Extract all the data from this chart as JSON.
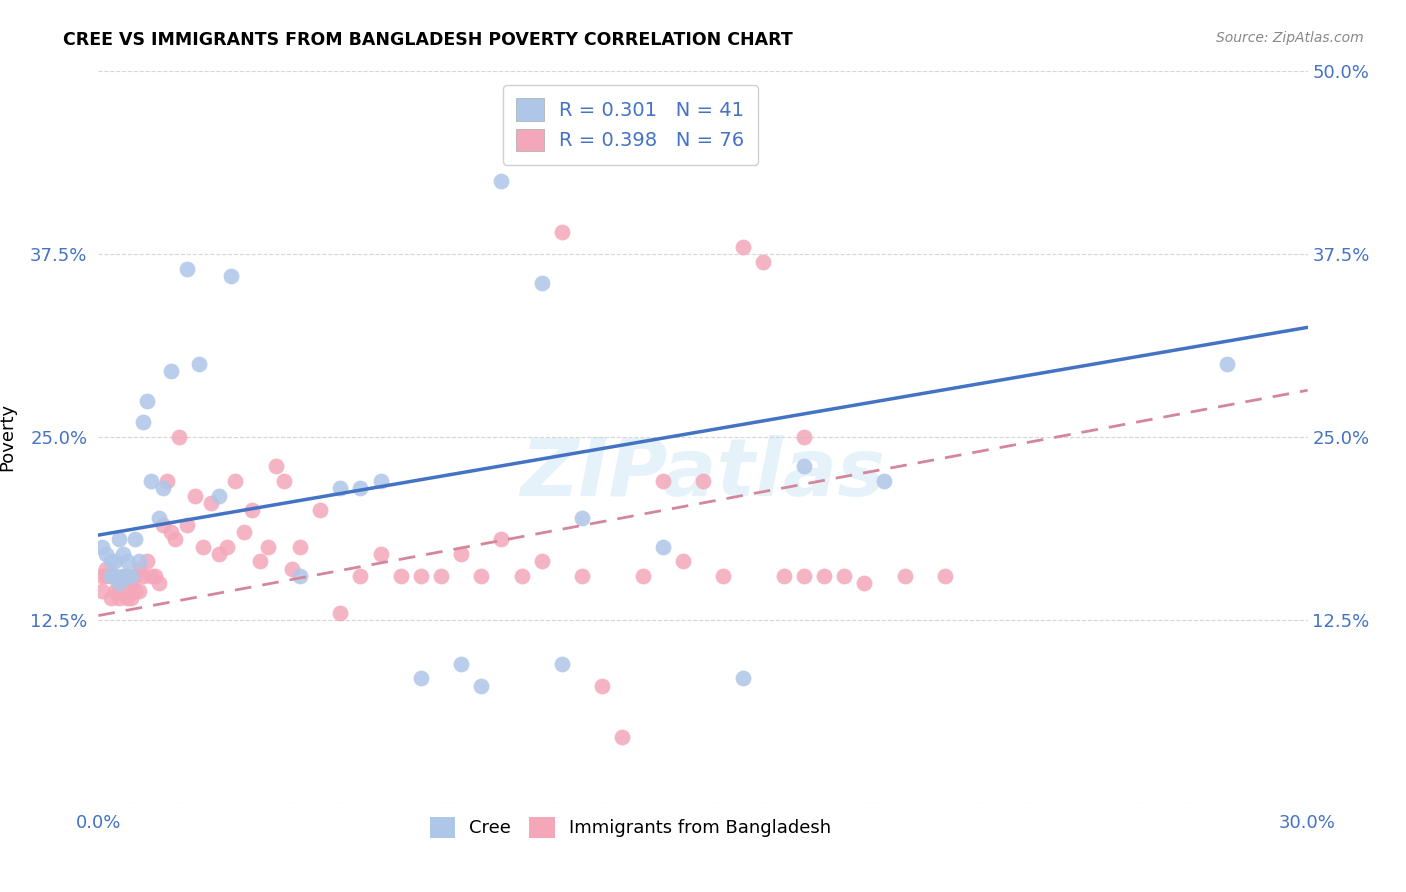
{
  "title": "CREE VS IMMIGRANTS FROM BANGLADESH POVERTY CORRELATION CHART",
  "source": "Source: ZipAtlas.com",
  "ylabel": "Poverty",
  "xlim": [
    0.0,
    0.3
  ],
  "ylim": [
    0.0,
    0.5
  ],
  "cree_color": "#aec6e8",
  "bangladesh_color": "#f4a7b9",
  "cree_line_color": "#4472c4",
  "bangladesh_line_color": "#d4869a",
  "legend1_label": "R = 0.301   N = 41",
  "legend2_label": "R = 0.398   N = 76",
  "cree_line_x0": 0.0,
  "cree_line_y0": 0.183,
  "cree_line_x1": 0.3,
  "cree_line_y1": 0.325,
  "bd_line_x0": 0.0,
  "bd_line_y0": 0.128,
  "bd_line_x1": 0.3,
  "bd_line_y1": 0.282,
  "cree_x": [
    0.001,
    0.002,
    0.003,
    0.003,
    0.004,
    0.004,
    0.005,
    0.005,
    0.006,
    0.006,
    0.007,
    0.007,
    0.008,
    0.009,
    0.01,
    0.011,
    0.012,
    0.013,
    0.015,
    0.016,
    0.018,
    0.022,
    0.025,
    0.03,
    0.033,
    0.05,
    0.06,
    0.065,
    0.07,
    0.08,
    0.09,
    0.1,
    0.11,
    0.12,
    0.14,
    0.16,
    0.175,
    0.195,
    0.28,
    0.095,
    0.115
  ],
  "cree_y": [
    0.175,
    0.17,
    0.155,
    0.165,
    0.155,
    0.165,
    0.15,
    0.18,
    0.155,
    0.17,
    0.155,
    0.165,
    0.155,
    0.18,
    0.165,
    0.26,
    0.275,
    0.22,
    0.195,
    0.215,
    0.295,
    0.365,
    0.3,
    0.21,
    0.36,
    0.155,
    0.215,
    0.215,
    0.22,
    0.085,
    0.095,
    0.425,
    0.355,
    0.195,
    0.175,
    0.085,
    0.23,
    0.22,
    0.3,
    0.08,
    0.095
  ],
  "bd_x": [
    0.001,
    0.001,
    0.002,
    0.002,
    0.003,
    0.003,
    0.004,
    0.004,
    0.005,
    0.005,
    0.006,
    0.006,
    0.007,
    0.007,
    0.008,
    0.008,
    0.009,
    0.009,
    0.01,
    0.01,
    0.011,
    0.012,
    0.013,
    0.014,
    0.015,
    0.016,
    0.017,
    0.018,
    0.019,
    0.02,
    0.022,
    0.024,
    0.026,
    0.028,
    0.03,
    0.032,
    0.034,
    0.036,
    0.038,
    0.04,
    0.042,
    0.044,
    0.046,
    0.048,
    0.05,
    0.055,
    0.06,
    0.065,
    0.07,
    0.075,
    0.08,
    0.085,
    0.09,
    0.095,
    0.1,
    0.105,
    0.11,
    0.115,
    0.12,
    0.125,
    0.13,
    0.135,
    0.14,
    0.145,
    0.15,
    0.155,
    0.16,
    0.165,
    0.17,
    0.175,
    0.18,
    0.185,
    0.19,
    0.2,
    0.175,
    0.21
  ],
  "bd_y": [
    0.155,
    0.145,
    0.16,
    0.155,
    0.14,
    0.155,
    0.145,
    0.155,
    0.14,
    0.145,
    0.15,
    0.155,
    0.14,
    0.155,
    0.15,
    0.14,
    0.145,
    0.155,
    0.145,
    0.16,
    0.155,
    0.165,
    0.155,
    0.155,
    0.15,
    0.19,
    0.22,
    0.185,
    0.18,
    0.25,
    0.19,
    0.21,
    0.175,
    0.205,
    0.17,
    0.175,
    0.22,
    0.185,
    0.2,
    0.165,
    0.175,
    0.23,
    0.22,
    0.16,
    0.175,
    0.2,
    0.13,
    0.155,
    0.17,
    0.155,
    0.155,
    0.155,
    0.17,
    0.155,
    0.18,
    0.155,
    0.165,
    0.39,
    0.155,
    0.08,
    0.045,
    0.155,
    0.22,
    0.165,
    0.22,
    0.155,
    0.38,
    0.37,
    0.155,
    0.155,
    0.155,
    0.155,
    0.15,
    0.155,
    0.25,
    0.155
  ],
  "watermark": "ZIPatlas"
}
